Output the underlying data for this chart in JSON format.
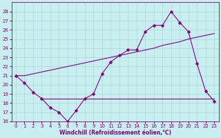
{
  "background_color": "#c8eef0",
  "line_color": "#800080",
  "grid_color": "#a8d8da",
  "xlabel": "Windchill (Refroidissement éolien,°C)",
  "x_values": [
    0,
    1,
    2,
    3,
    4,
    5,
    6,
    7,
    8,
    9,
    10,
    11,
    12,
    13,
    14,
    15,
    16,
    17,
    18,
    19,
    20,
    21,
    22,
    23
  ],
  "windchill_line": [
    21,
    20.2,
    19.2,
    18.5,
    17.5,
    17.0,
    16.0,
    17.2,
    18.5,
    19.0,
    21.2,
    22.5,
    23.2,
    23.8,
    23.8,
    25.8,
    26.5,
    26.5,
    28.0,
    26.8,
    25.8,
    22.3,
    19.3,
    18.2
  ],
  "flat_line_x": [
    3,
    23
  ],
  "flat_line_y": [
    18.5,
    18.5
  ],
  "trend_line": [
    21.0,
    21.0,
    21.2,
    21.4,
    21.6,
    21.8,
    22.0,
    22.2,
    22.4,
    22.6,
    22.8,
    23.0,
    23.2,
    23.4,
    23.6,
    23.8,
    24.0,
    24.3,
    24.5,
    24.7,
    25.0,
    25.2,
    25.4,
    25.6
  ],
  "ylim": [
    16,
    29
  ],
  "xlim": [
    -0.5,
    23.5
  ],
  "yticks": [
    16,
    17,
    18,
    19,
    20,
    21,
    22,
    23,
    24,
    25,
    26,
    27,
    28
  ],
  "xticks": [
    0,
    1,
    2,
    3,
    4,
    5,
    6,
    7,
    8,
    9,
    10,
    11,
    12,
    13,
    14,
    15,
    16,
    17,
    18,
    19,
    20,
    21,
    22,
    23
  ],
  "tick_fontsize": 5,
  "xlabel_fontsize": 5.5,
  "linewidth": 0.8,
  "markersize": 2.5
}
